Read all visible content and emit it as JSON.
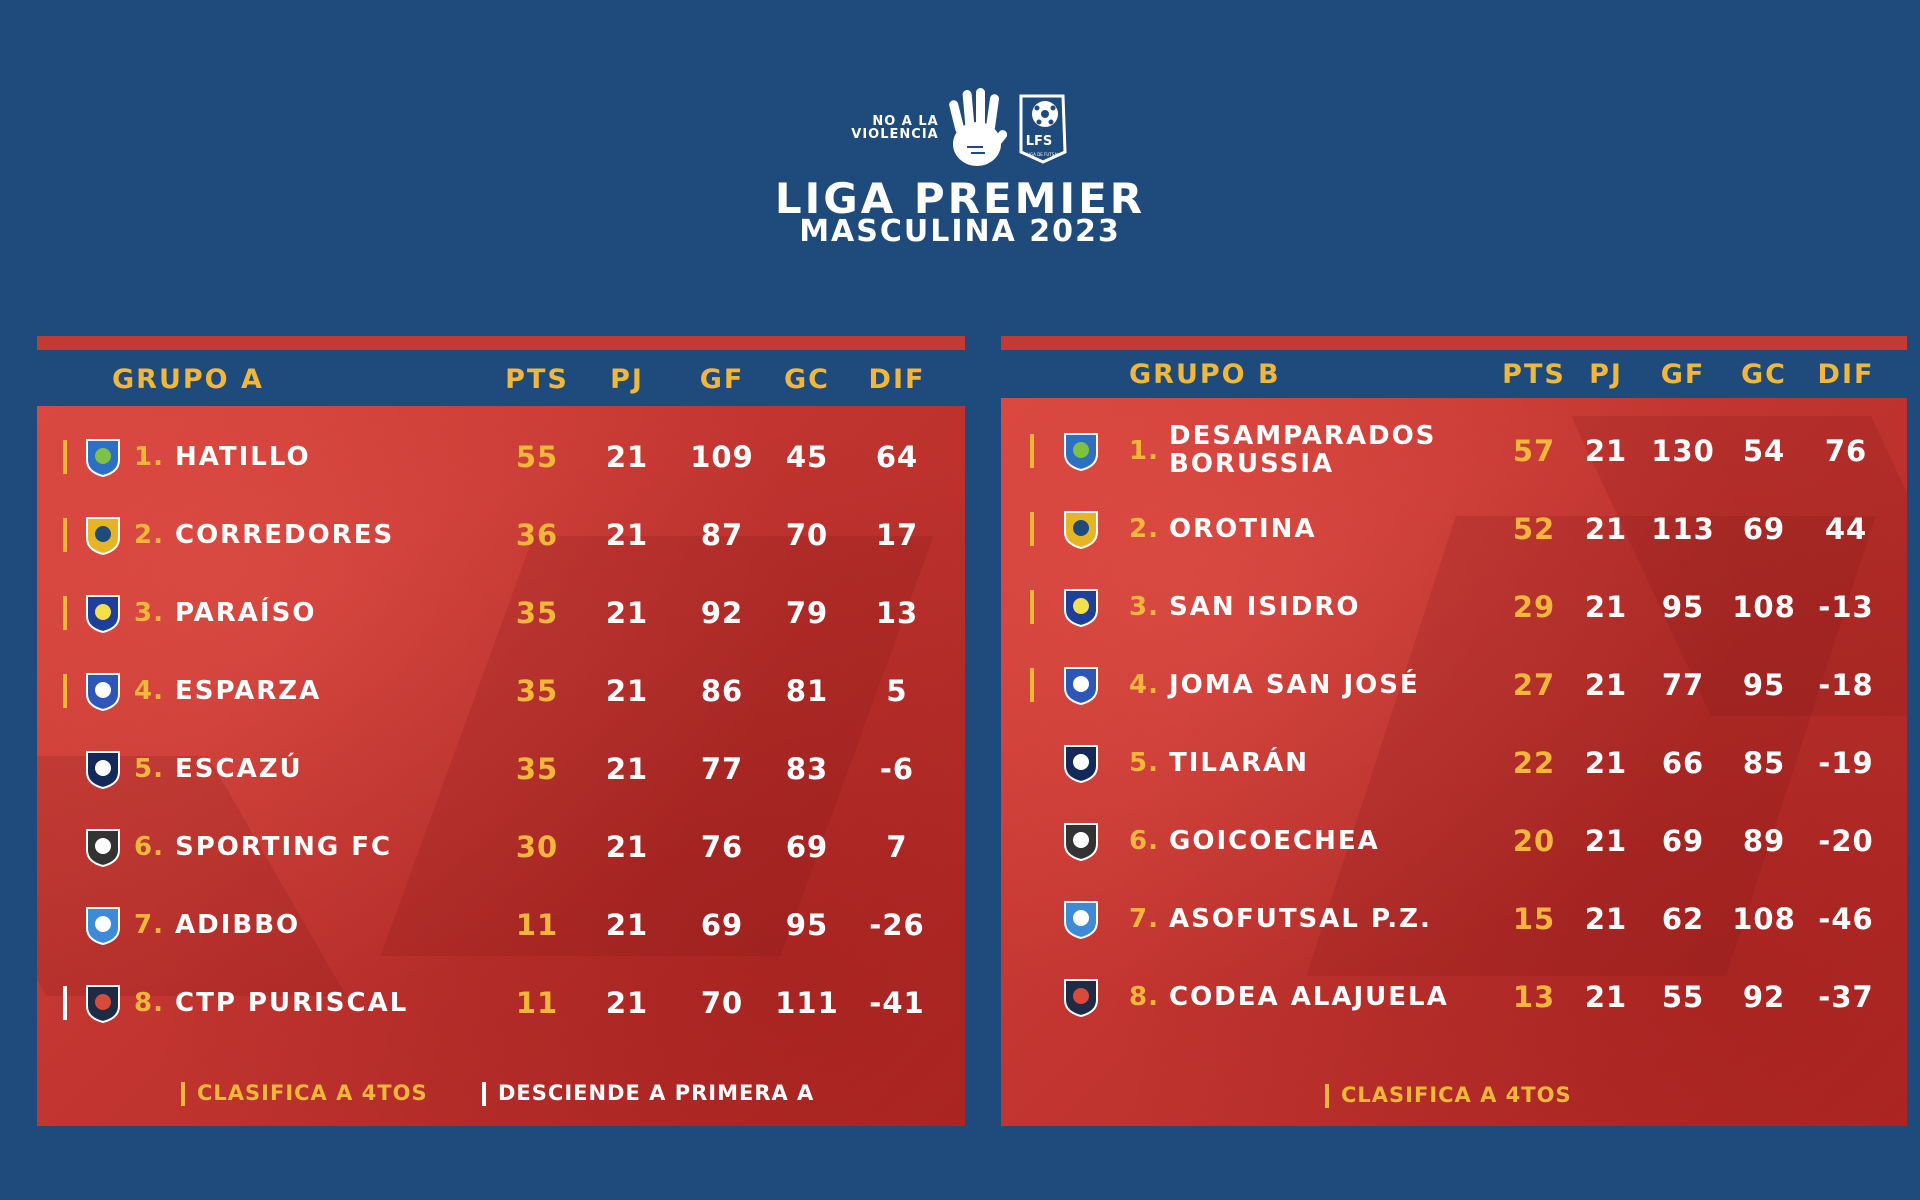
{
  "header": {
    "campaign_text": [
      "NO A LA",
      "VIOLENCIA"
    ],
    "badge_text": "LFS",
    "badge_subtext": "LIGA DE FUTSAL",
    "title_line1": "LIGA PREMIER",
    "title_line2": "MASCULINA 2023"
  },
  "columns": {
    "pts": "PTS",
    "pj": "PJ",
    "gf": "GF",
    "gc": "GC",
    "dif": "DIF"
  },
  "colors": {
    "background": "#1f4a7c",
    "accent": "#f0b73a",
    "panel_red": "#c23530",
    "relegation": "#ffffff"
  },
  "group_a": {
    "title": "GRUPO A",
    "rows": [
      {
        "rank": "1.",
        "team": "HATILLO",
        "pts": "55",
        "pj": "21",
        "gf": "109",
        "gc": "45",
        "dif": "64",
        "marker": "qualify",
        "crest": "hatillo-crest-icon"
      },
      {
        "rank": "2.",
        "team": "CORREDORES",
        "pts": "36",
        "pj": "21",
        "gf": "87",
        "gc": "70",
        "dif": "17",
        "marker": "qualify",
        "crest": "corredores-crest-icon"
      },
      {
        "rank": "3.",
        "team": "PARAÍSO",
        "pts": "35",
        "pj": "21",
        "gf": "92",
        "gc": "79",
        "dif": "13",
        "marker": "qualify",
        "crest": "paraiso-crest-icon"
      },
      {
        "rank": "4.",
        "team": "ESPARZA",
        "pts": "35",
        "pj": "21",
        "gf": "86",
        "gc": "81",
        "dif": "5",
        "marker": "qualify",
        "crest": "esparza-crest-icon"
      },
      {
        "rank": "5.",
        "team": "ESCAZÚ",
        "pts": "35",
        "pj": "21",
        "gf": "77",
        "gc": "83",
        "dif": "-6",
        "marker": "none",
        "crest": "escazu-crest-icon"
      },
      {
        "rank": "6.",
        "team": "SPORTING FC",
        "pts": "30",
        "pj": "21",
        "gf": "76",
        "gc": "69",
        "dif": "7",
        "marker": "none",
        "crest": "sporting-crest-icon"
      },
      {
        "rank": "7.",
        "team": "ADIBBO",
        "pts": "11",
        "pj": "21",
        "gf": "69",
        "gc": "95",
        "dif": "-26",
        "marker": "none",
        "crest": "adibbo-crest-icon"
      },
      {
        "rank": "8.",
        "team": "CTP PURISCAL",
        "pts": "11",
        "pj": "21",
        "gf": "70",
        "gc": "111",
        "dif": "-41",
        "marker": "relegate",
        "crest": "puriscal-crest-icon"
      }
    ],
    "legend_qualify": "CLASIFICA A 4TOS",
    "legend_relegate": "DESCIENDE A PRIMERA A"
  },
  "group_b": {
    "title": "GRUPO B",
    "rows": [
      {
        "rank": "1.",
        "team": "DESAMPARADOS BORUSSIA",
        "pts": "57",
        "pj": "21",
        "gf": "130",
        "gc": "54",
        "dif": "76",
        "marker": "qualify",
        "crest": "desamparados-crest-icon"
      },
      {
        "rank": "2.",
        "team": "OROTINA",
        "pts": "52",
        "pj": "21",
        "gf": "113",
        "gc": "69",
        "dif": "44",
        "marker": "qualify",
        "crest": "orotina-crest-icon"
      },
      {
        "rank": "3.",
        "team": "SAN ISIDRO",
        "pts": "29",
        "pj": "21",
        "gf": "95",
        "gc": "108",
        "dif": "-13",
        "marker": "qualify",
        "crest": "san-isidro-crest-icon"
      },
      {
        "rank": "4.",
        "team": "JOMA SAN JOSÉ",
        "pts": "27",
        "pj": "21",
        "gf": "77",
        "gc": "95",
        "dif": "-18",
        "marker": "qualify",
        "crest": "joma-crest-icon"
      },
      {
        "rank": "5.",
        "team": "TILARÁN",
        "pts": "22",
        "pj": "21",
        "gf": "66",
        "gc": "85",
        "dif": "-19",
        "marker": "none",
        "crest": "tilaran-crest-icon"
      },
      {
        "rank": "6.",
        "team": "GOICOECHEA",
        "pts": "20",
        "pj": "21",
        "gf": "69",
        "gc": "89",
        "dif": "-20",
        "marker": "none",
        "crest": "goicoechea-crest-icon"
      },
      {
        "rank": "7.",
        "team": "ASOFUTSAL P.Z.",
        "pts": "15",
        "pj": "21",
        "gf": "62",
        "gc": "108",
        "dif": "-46",
        "marker": "none",
        "crest": "asofutsal-crest-icon"
      },
      {
        "rank": "8.",
        "team": "CODEA ALAJUELA",
        "pts": "13",
        "pj": "21",
        "gf": "55",
        "gc": "92",
        "dif": "-37",
        "marker": "none",
        "crest": "codea-crest-icon"
      }
    ],
    "legend_qualify": "CLASIFICA A 4TOS"
  }
}
